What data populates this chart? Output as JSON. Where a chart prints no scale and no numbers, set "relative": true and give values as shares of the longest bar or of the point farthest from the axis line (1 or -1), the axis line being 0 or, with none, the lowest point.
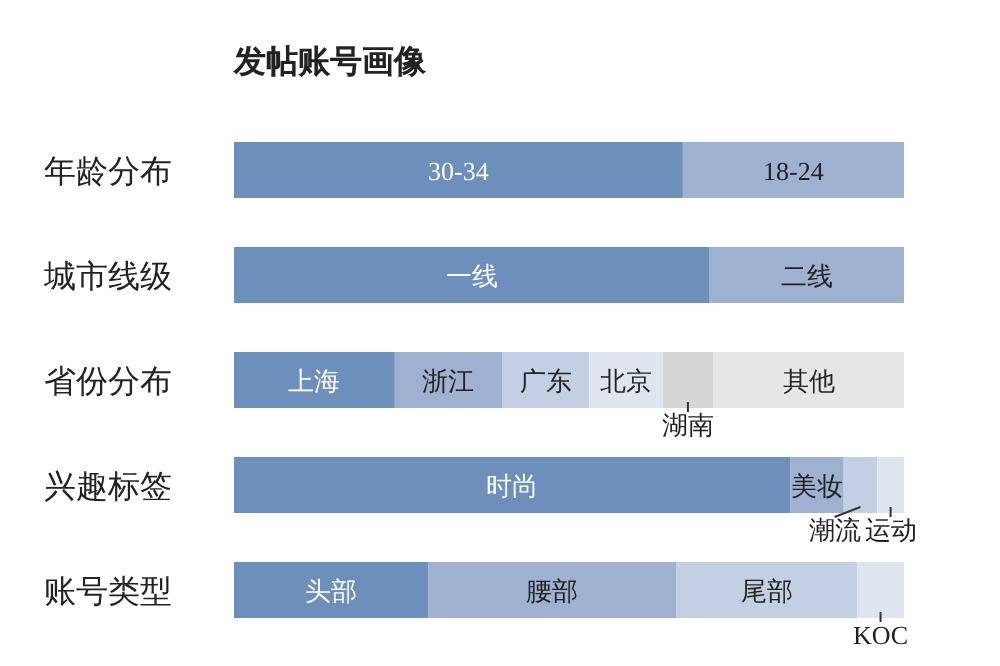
{
  "chart_data": {
    "type": "bar",
    "title": "发帖账号画像",
    "orientation": "horizontal",
    "stacked": true,
    "relative": true,
    "categories": [
      "年龄分布",
      "城市线级",
      "省份分布",
      "兴趣标签",
      "账号类型"
    ],
    "series": [
      {
        "name": "30-34",
        "color": "#6d8fbb",
        "values": [
          0.67,
          null,
          null,
          null,
          null
        ]
      },
      {
        "name": "18-24",
        "color": "#9eb1d0",
        "values": [
          0.33,
          null,
          null,
          null,
          null
        ]
      },
      {
        "name": "一线",
        "color": "#6d8fbb",
        "values": [
          null,
          0.71,
          null,
          null,
          null
        ]
      },
      {
        "name": "二线",
        "color": "#9eb1d0",
        "values": [
          null,
          0.29,
          null,
          null,
          null
        ]
      },
      {
        "name": "上海",
        "color": "#6d8fbb",
        "values": [
          null,
          null,
          0.24,
          null,
          null
        ]
      },
      {
        "name": "浙江",
        "color": "#9eb1d0",
        "values": [
          null,
          null,
          0.16,
          null,
          null
        ]
      },
      {
        "name": "广东",
        "color": "#c3cfe2",
        "values": [
          null,
          null,
          0.13,
          null,
          null
        ]
      },
      {
        "name": "北京",
        "color": "#dfe5ef",
        "values": [
          null,
          null,
          0.11,
          null,
          null
        ]
      },
      {
        "name": "湖南",
        "color": "#d6d6d6",
        "values": [
          null,
          null,
          0.075,
          null,
          null
        ]
      },
      {
        "name": "其他",
        "color": "#e6e6e6",
        "values": [
          null,
          null,
          0.285,
          null,
          null
        ]
      },
      {
        "name": "时尚",
        "color": "#6d8fbb",
        "values": [
          null,
          null,
          null,
          0.83,
          null
        ]
      },
      {
        "name": "美妆",
        "color": "#9eb1d0",
        "values": [
          null,
          null,
          null,
          0.08,
          null
        ]
      },
      {
        "name": "潮流",
        "color": "#c3cfe2",
        "values": [
          null,
          null,
          null,
          0.05,
          null
        ]
      },
      {
        "name": "运动",
        "color": "#dfe5ef",
        "values": [
          null,
          null,
          null,
          0.04,
          null
        ]
      },
      {
        "name": "头部",
        "color": "#6d8fbb",
        "values": [
          null,
          null,
          null,
          null,
          0.29
        ]
      },
      {
        "name": "腰部",
        "color": "#9eb1d0",
        "values": [
          null,
          null,
          null,
          null,
          0.37
        ]
      },
      {
        "name": "尾部",
        "color": "#c3cfe2",
        "values": [
          null,
          null,
          null,
          null,
          0.27
        ]
      },
      {
        "name": "KOC",
        "color": "#dfe5ef",
        "values": [
          null,
          null,
          null,
          null,
          0.07
        ]
      }
    ],
    "legend": false
  }
}
